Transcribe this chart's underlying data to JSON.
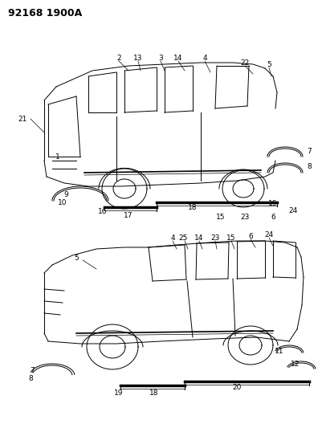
{
  "title": "92168 1900A",
  "bg_color": "#ffffff",
  "line_color": "#000000",
  "title_fontsize": 9,
  "label_fontsize": 6.5,
  "figsize": [
    4.02,
    5.33
  ],
  "dpi": 100
}
